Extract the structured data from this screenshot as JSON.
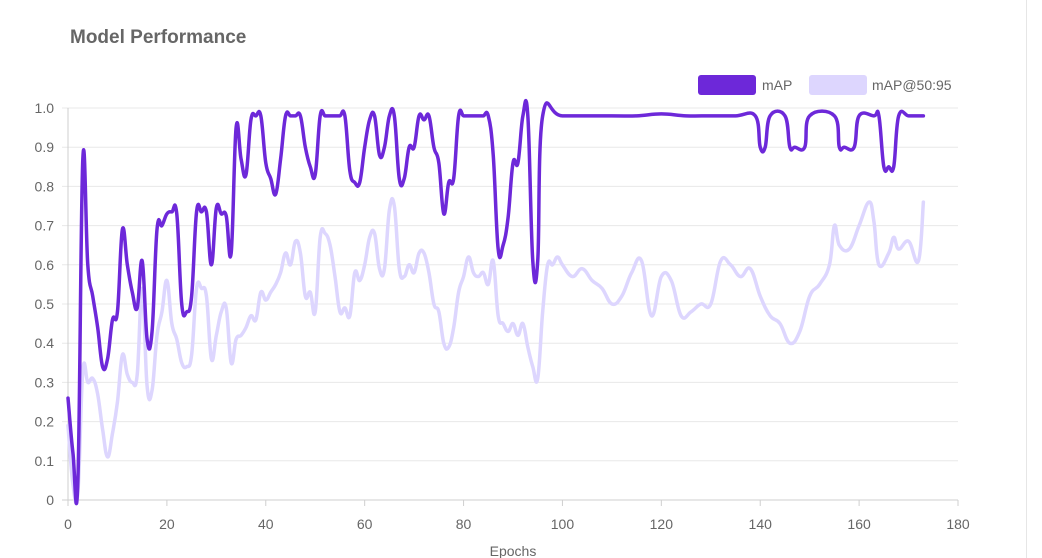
{
  "card": {
    "title": "Model Performance"
  },
  "chart_data": {
    "type": "line",
    "title": "",
    "xlabel": "Epochs",
    "ylabel": "",
    "xlim": [
      0,
      180
    ],
    "ylim": [
      0,
      1.0
    ],
    "x_ticks": [
      "0",
      "20",
      "40",
      "60",
      "80",
      "100",
      "120",
      "140",
      "160",
      "180"
    ],
    "y_ticks": [
      "0",
      "0.1",
      "0.2",
      "0.3",
      "0.4",
      "0.5",
      "0.6",
      "0.7",
      "0.8",
      "0.9",
      "1.0"
    ],
    "grid": true,
    "legend_position": "top-right",
    "series": [
      {
        "name": "mAP",
        "color": "#6d28d9",
        "points": [
          [
            0,
            0.26
          ],
          [
            1,
            0.12
          ],
          [
            2,
            0.05
          ],
          [
            3,
            0.87
          ],
          [
            4,
            0.6
          ],
          [
            5,
            0.52
          ],
          [
            6,
            0.44
          ],
          [
            7,
            0.34
          ],
          [
            8,
            0.36
          ],
          [
            9,
            0.46
          ],
          [
            10,
            0.48
          ],
          [
            11,
            0.69
          ],
          [
            12,
            0.6
          ],
          [
            13,
            0.53
          ],
          [
            14,
            0.49
          ],
          [
            15,
            0.61
          ],
          [
            16,
            0.41
          ],
          [
            17,
            0.43
          ],
          [
            18,
            0.69
          ],
          [
            19,
            0.7
          ],
          [
            20,
            0.73
          ],
          [
            21,
            0.735
          ],
          [
            22,
            0.73
          ],
          [
            23,
            0.5
          ],
          [
            24,
            0.48
          ],
          [
            25,
            0.52
          ],
          [
            26,
            0.735
          ],
          [
            27,
            0.735
          ],
          [
            28,
            0.735
          ],
          [
            29,
            0.6
          ],
          [
            30,
            0.745
          ],
          [
            31,
            0.73
          ],
          [
            32,
            0.725
          ],
          [
            33,
            0.63
          ],
          [
            34,
            0.95
          ],
          [
            35,
            0.87
          ],
          [
            36,
            0.83
          ],
          [
            37,
            0.97
          ],
          [
            38,
            0.98
          ],
          [
            39,
            0.98
          ],
          [
            40,
            0.86
          ],
          [
            41,
            0.82
          ],
          [
            42,
            0.78
          ],
          [
            43,
            0.87
          ],
          [
            44,
            0.98
          ],
          [
            45,
            0.98
          ],
          [
            46,
            0.98
          ],
          [
            47,
            0.98
          ],
          [
            48,
            0.9
          ],
          [
            49,
            0.85
          ],
          [
            50,
            0.83
          ],
          [
            51,
            0.98
          ],
          [
            52,
            0.98
          ],
          [
            53,
            0.98
          ],
          [
            54,
            0.98
          ],
          [
            55,
            0.98
          ],
          [
            56,
            0.98
          ],
          [
            57,
            0.84
          ],
          [
            58,
            0.81
          ],
          [
            59,
            0.81
          ],
          [
            60,
            0.9
          ],
          [
            61,
            0.97
          ],
          [
            62,
            0.98
          ],
          [
            63,
            0.88
          ],
          [
            64,
            0.9
          ],
          [
            65,
            0.98
          ],
          [
            66,
            0.98
          ],
          [
            67,
            0.82
          ],
          [
            68,
            0.82
          ],
          [
            69,
            0.9
          ],
          [
            70,
            0.9
          ],
          [
            71,
            0.98
          ],
          [
            72,
            0.97
          ],
          [
            73,
            0.98
          ],
          [
            74,
            0.9
          ],
          [
            75,
            0.86
          ],
          [
            76,
            0.73
          ],
          [
            77,
            0.81
          ],
          [
            78,
            0.82
          ],
          [
            79,
            0.98
          ],
          [
            80,
            0.98
          ],
          [
            81,
            0.98
          ],
          [
            82,
            0.98
          ],
          [
            83,
            0.98
          ],
          [
            84,
            0.98
          ],
          [
            85,
            0.98
          ],
          [
            86,
            0.88
          ],
          [
            87,
            0.64
          ],
          [
            88,
            0.65
          ],
          [
            89,
            0.72
          ],
          [
            90,
            0.86
          ],
          [
            91,
            0.86
          ],
          [
            92,
            0.98
          ],
          [
            93,
            0.98
          ],
          [
            94,
            0.61
          ],
          [
            95,
            0.61
          ],
          [
            96,
            0.98
          ],
          [
            100,
            0.98
          ],
          [
            110,
            0.98
          ],
          [
            115,
            0.98
          ],
          [
            120,
            0.985
          ],
          [
            125,
            0.98
          ],
          [
            130,
            0.98
          ],
          [
            135,
            0.98
          ],
          [
            139,
            0.98
          ],
          [
            140,
            0.9
          ],
          [
            141,
            0.9
          ],
          [
            142,
            0.98
          ],
          [
            145,
            0.98
          ],
          [
            146,
            0.9
          ],
          [
            147,
            0.9
          ],
          [
            149,
            0.9
          ],
          [
            150,
            0.98
          ],
          [
            155,
            0.98
          ],
          [
            156,
            0.9
          ],
          [
            157,
            0.9
          ],
          [
            159,
            0.9
          ],
          [
            160,
            0.98
          ],
          [
            163,
            0.98
          ],
          [
            164,
            0.98
          ],
          [
            165,
            0.85
          ],
          [
            166,
            0.85
          ],
          [
            167,
            0.85
          ],
          [
            168,
            0.98
          ],
          [
            170,
            0.98
          ],
          [
            172,
            0.98
          ],
          [
            173,
            0.98
          ]
        ]
      },
      {
        "name": "mAP@50:95",
        "color": "#ddd6fe",
        "points": [
          [
            0,
            0.19
          ],
          [
            1,
            0.04
          ],
          [
            2,
            0.02
          ],
          [
            3,
            0.33
          ],
          [
            4,
            0.3
          ],
          [
            5,
            0.31
          ],
          [
            6,
            0.27
          ],
          [
            7,
            0.18
          ],
          [
            8,
            0.11
          ],
          [
            9,
            0.17
          ],
          [
            10,
            0.25
          ],
          [
            11,
            0.37
          ],
          [
            12,
            0.32
          ],
          [
            13,
            0.3
          ],
          [
            14,
            0.32
          ],
          [
            15,
            0.54
          ],
          [
            16,
            0.29
          ],
          [
            17,
            0.28
          ],
          [
            18,
            0.42
          ],
          [
            19,
            0.48
          ],
          [
            20,
            0.56
          ],
          [
            21,
            0.45
          ],
          [
            22,
            0.41
          ],
          [
            23,
            0.35
          ],
          [
            24,
            0.34
          ],
          [
            25,
            0.37
          ],
          [
            26,
            0.54
          ],
          [
            27,
            0.54
          ],
          [
            28,
            0.52
          ],
          [
            29,
            0.36
          ],
          [
            30,
            0.42
          ],
          [
            31,
            0.48
          ],
          [
            32,
            0.49
          ],
          [
            33,
            0.35
          ],
          [
            34,
            0.41
          ],
          [
            35,
            0.42
          ],
          [
            36,
            0.44
          ],
          [
            37,
            0.47
          ],
          [
            38,
            0.46
          ],
          [
            39,
            0.53
          ],
          [
            40,
            0.51
          ],
          [
            41,
            0.53
          ],
          [
            42,
            0.55
          ],
          [
            43,
            0.58
          ],
          [
            44,
            0.63
          ],
          [
            45,
            0.6
          ],
          [
            46,
            0.66
          ],
          [
            47,
            0.63
          ],
          [
            48,
            0.52
          ],
          [
            49,
            0.53
          ],
          [
            50,
            0.48
          ],
          [
            51,
            0.67
          ],
          [
            52,
            0.68
          ],
          [
            53,
            0.65
          ],
          [
            54,
            0.57
          ],
          [
            55,
            0.48
          ],
          [
            56,
            0.49
          ],
          [
            57,
            0.47
          ],
          [
            58,
            0.58
          ],
          [
            59,
            0.56
          ],
          [
            60,
            0.6
          ],
          [
            61,
            0.67
          ],
          [
            62,
            0.68
          ],
          [
            63,
            0.59
          ],
          [
            64,
            0.59
          ],
          [
            65,
            0.74
          ],
          [
            66,
            0.75
          ],
          [
            67,
            0.59
          ],
          [
            68,
            0.57
          ],
          [
            69,
            0.6
          ],
          [
            70,
            0.58
          ],
          [
            71,
            0.63
          ],
          [
            72,
            0.63
          ],
          [
            73,
            0.58
          ],
          [
            74,
            0.5
          ],
          [
            75,
            0.48
          ],
          [
            76,
            0.4
          ],
          [
            77,
            0.39
          ],
          [
            78,
            0.44
          ],
          [
            79,
            0.53
          ],
          [
            80,
            0.57
          ],
          [
            81,
            0.62
          ],
          [
            82,
            0.58
          ],
          [
            83,
            0.57
          ],
          [
            84,
            0.58
          ],
          [
            85,
            0.55
          ],
          [
            86,
            0.61
          ],
          [
            87,
            0.47
          ],
          [
            88,
            0.45
          ],
          [
            89,
            0.43
          ],
          [
            90,
            0.45
          ],
          [
            91,
            0.42
          ],
          [
            92,
            0.45
          ],
          [
            93,
            0.39
          ],
          [
            94,
            0.34
          ],
          [
            95,
            0.31
          ],
          [
            96,
            0.48
          ],
          [
            97,
            0.6
          ],
          [
            98,
            0.6
          ],
          [
            99,
            0.62
          ],
          [
            100,
            0.6
          ],
          [
            102,
            0.57
          ],
          [
            104,
            0.59
          ],
          [
            106,
            0.56
          ],
          [
            108,
            0.54
          ],
          [
            110,
            0.5
          ],
          [
            112,
            0.52
          ],
          [
            114,
            0.58
          ],
          [
            116,
            0.61
          ],
          [
            118,
            0.47
          ],
          [
            120,
            0.57
          ],
          [
            122,
            0.56
          ],
          [
            124,
            0.47
          ],
          [
            126,
            0.48
          ],
          [
            128,
            0.5
          ],
          [
            130,
            0.5
          ],
          [
            132,
            0.61
          ],
          [
            134,
            0.6
          ],
          [
            136,
            0.57
          ],
          [
            138,
            0.59
          ],
          [
            140,
            0.52
          ],
          [
            142,
            0.47
          ],
          [
            144,
            0.45
          ],
          [
            146,
            0.4
          ],
          [
            148,
            0.43
          ],
          [
            150,
            0.52
          ],
          [
            152,
            0.55
          ],
          [
            154,
            0.6
          ],
          [
            155,
            0.7
          ],
          [
            156,
            0.65
          ],
          [
            158,
            0.64
          ],
          [
            160,
            0.7
          ],
          [
            162,
            0.76
          ],
          [
            163,
            0.71
          ],
          [
            164,
            0.6
          ],
          [
            166,
            0.63
          ],
          [
            167,
            0.67
          ],
          [
            168,
            0.64
          ],
          [
            170,
            0.66
          ],
          [
            172,
            0.61
          ],
          [
            173,
            0.76
          ]
        ]
      }
    ]
  }
}
